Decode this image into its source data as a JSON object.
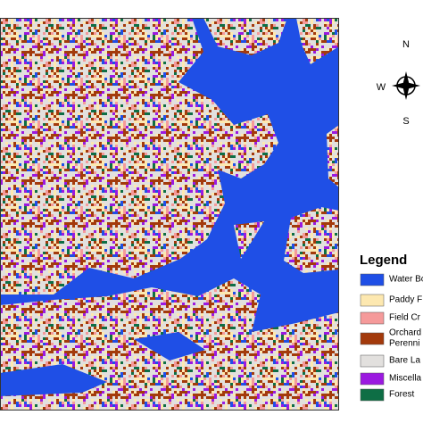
{
  "legend": {
    "title": "Legend",
    "items": [
      {
        "label": "Water Bo",
        "color": "#1f4fe6"
      },
      {
        "label": "Paddy F",
        "color": "#fde8b0"
      },
      {
        "label": "Field Cr",
        "color": "#f59a9a"
      },
      {
        "label": [
          "Orchard",
          "Perenni"
        ],
        "color": "#a33a0c"
      },
      {
        "label": "Bare La",
        "color": "#e2e0de"
      },
      {
        "label": "Miscella",
        "color": "#9b19e0"
      },
      {
        "label": "Forest",
        "color": "#0e6e45"
      }
    ]
  },
  "compass": {
    "north": "N",
    "west": "W",
    "south": "S"
  }
}
